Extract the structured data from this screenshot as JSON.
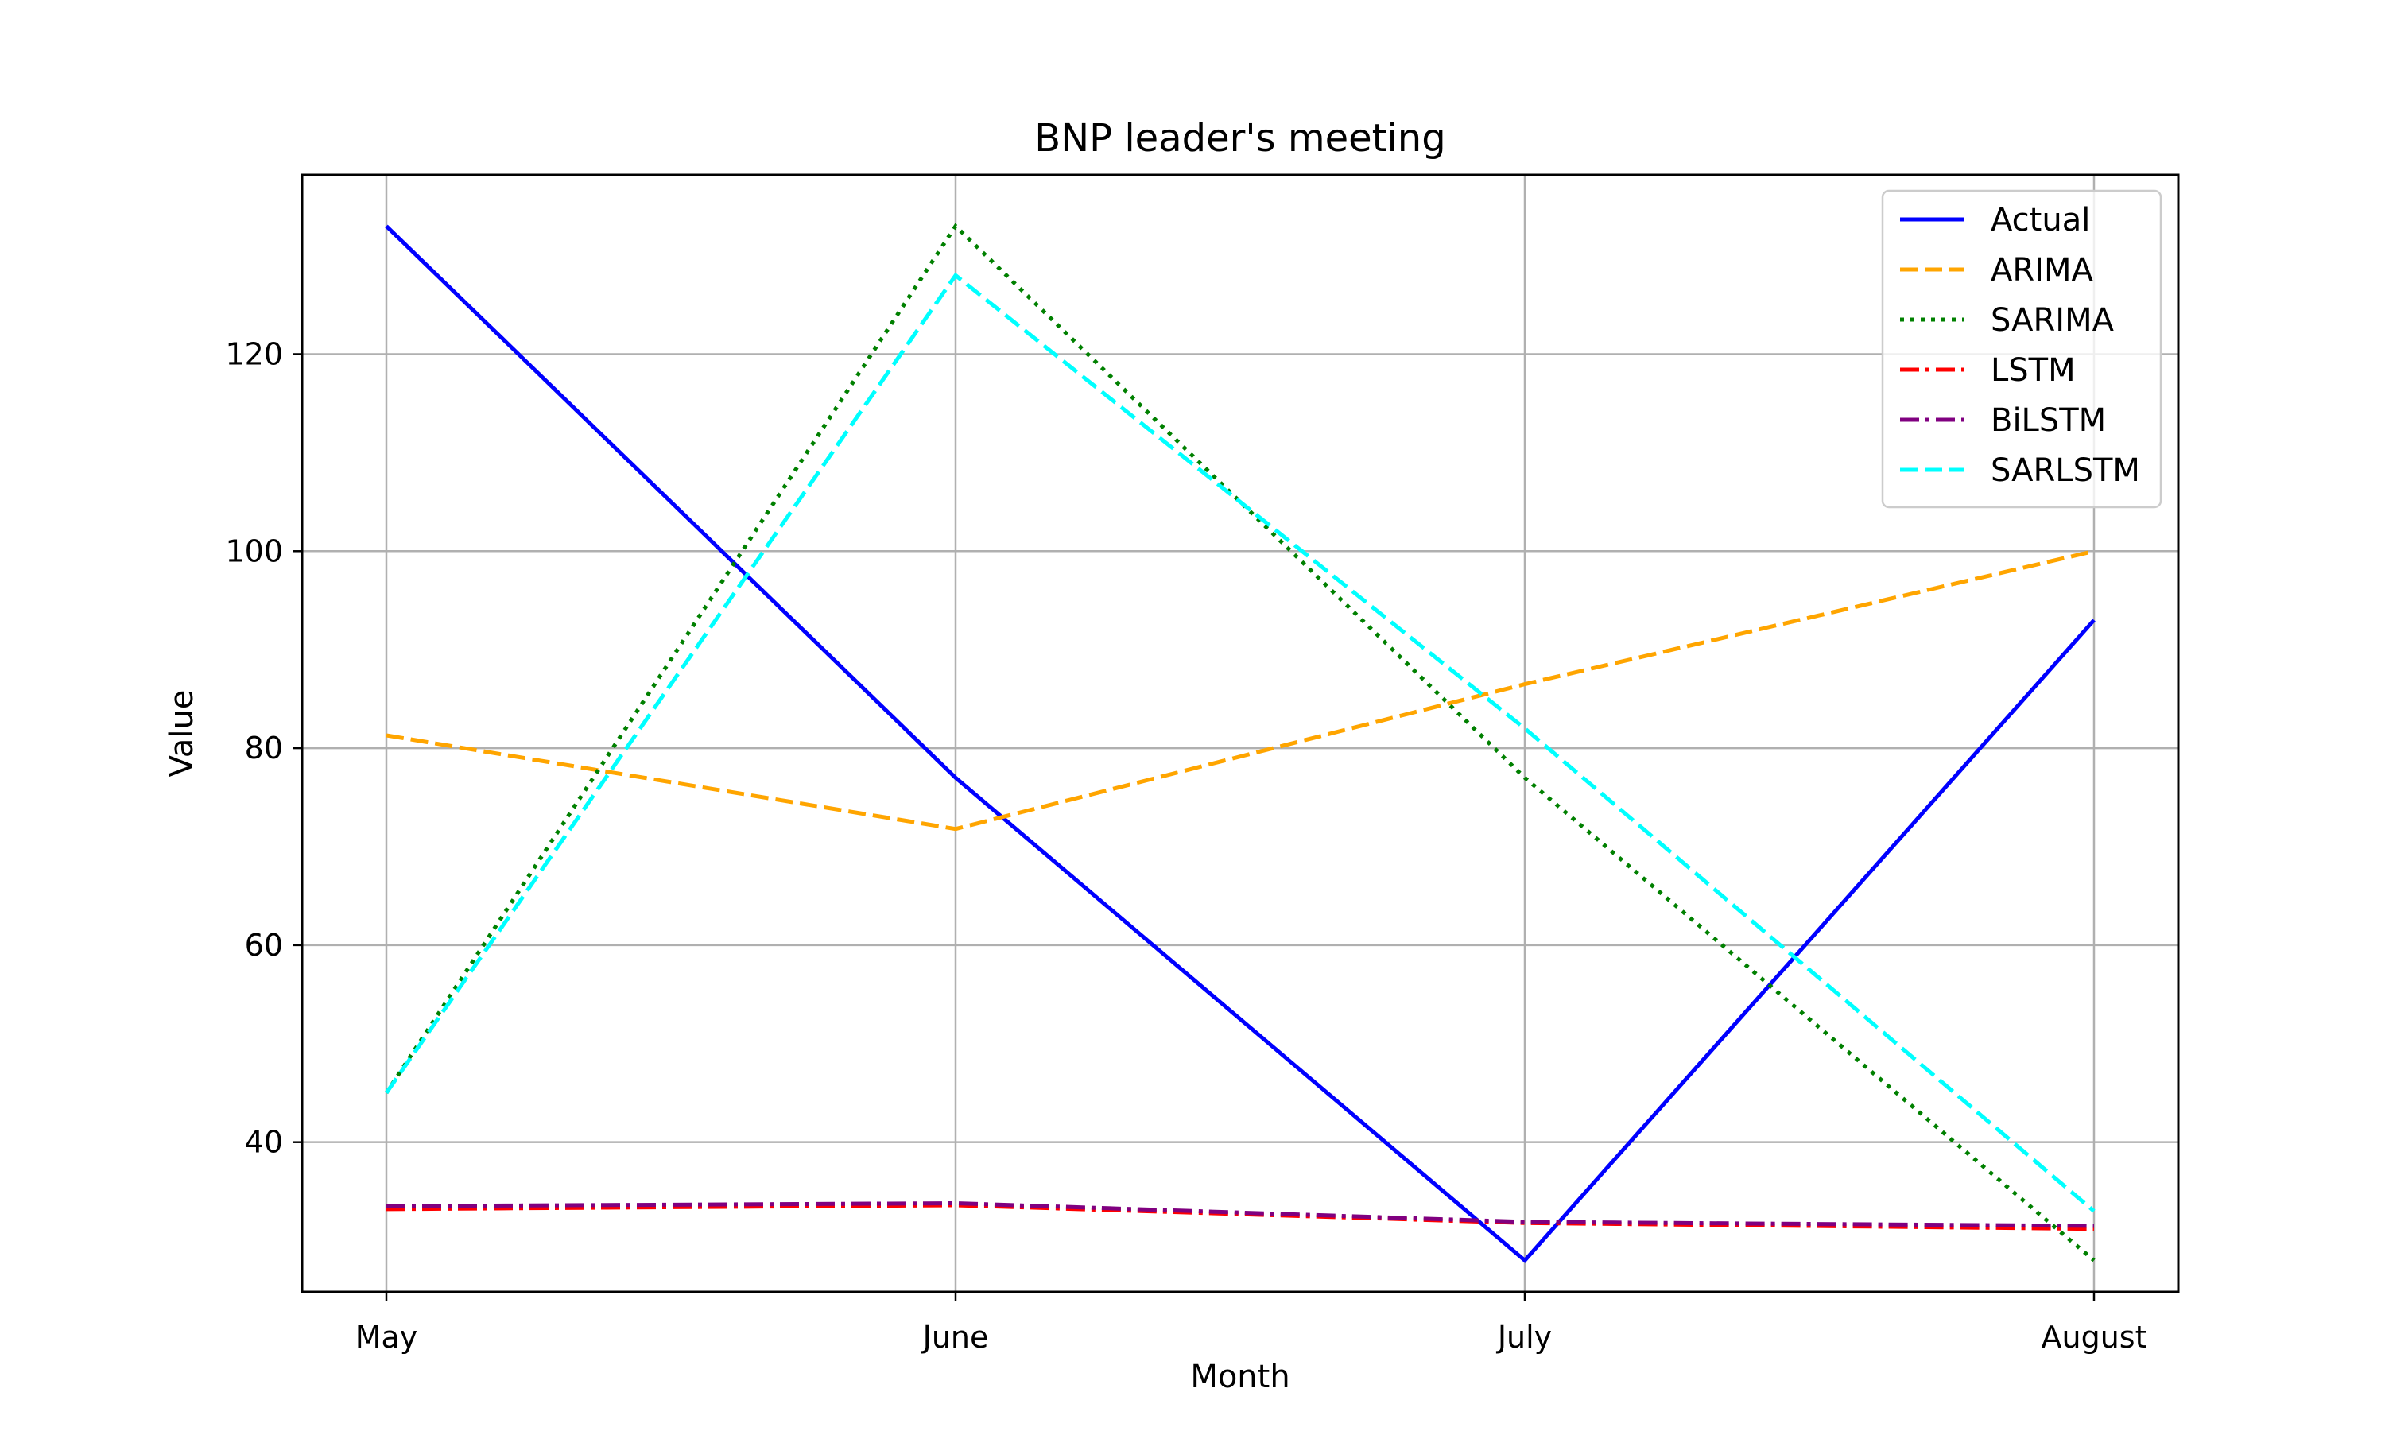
{
  "chart_data": {
    "type": "line",
    "title": "BNP leader's meeting",
    "xlabel": "Month",
    "ylabel": "Value",
    "categories": [
      "May",
      "June",
      "July",
      "August"
    ],
    "ylim": [
      24.8,
      138.2
    ],
    "yticks": [
      40,
      60,
      80,
      100,
      120
    ],
    "grid": true,
    "legend_position": "top-right",
    "series": [
      {
        "name": "Actual",
        "values": [
          133,
          77,
          28,
          93
        ],
        "color": "#0000ff",
        "dash": "solid"
      },
      {
        "name": "ARIMA",
        "values": [
          81.3,
          71.8,
          86.5,
          100
        ],
        "color": "#ffa500",
        "dash": "dashed"
      },
      {
        "name": "SARIMA",
        "values": [
          45,
          133,
          77,
          28
        ],
        "color": "#008000",
        "dash": "dotted"
      },
      {
        "name": "LSTM",
        "values": [
          33.2,
          33.6,
          31.8,
          31.2
        ],
        "color": "#ff0000",
        "dash": "dashdot"
      },
      {
        "name": "BiLSTM",
        "values": [
          33.5,
          33.8,
          31.9,
          31.5
        ],
        "color": "#800080",
        "dash": "dashdot"
      },
      {
        "name": "SARLSTM",
        "values": [
          45,
          128,
          82,
          33
        ],
        "color": "#00ffff",
        "dash": "dashed"
      }
    ]
  }
}
